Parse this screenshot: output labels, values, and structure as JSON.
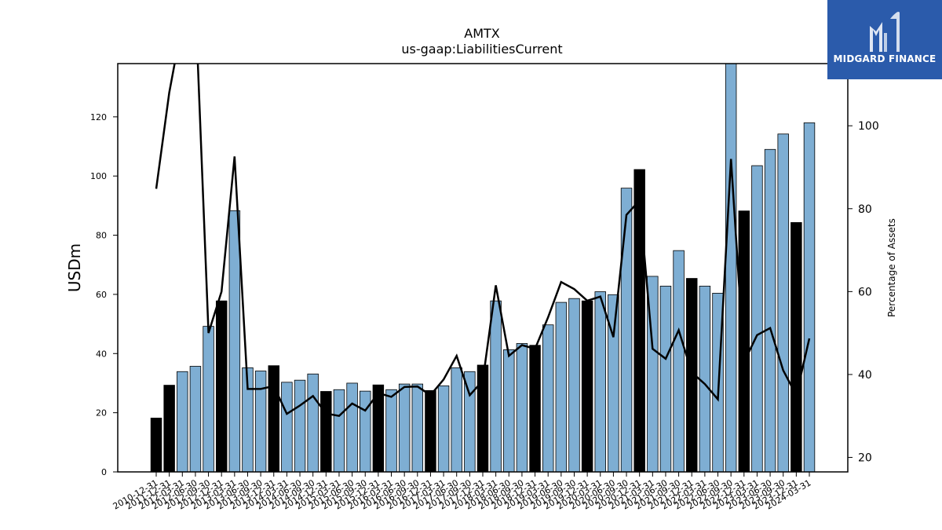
{
  "header": {
    "ticker": "AMTX",
    "concept": "us-gaap:LiabilitiesCurrent"
  },
  "logo": {
    "text": "MIDGARD FINANCE",
    "bg_color": "#2b5bab"
  },
  "colors": {
    "bar_quarter": "#7eaed3",
    "bar_year_end": "#000000",
    "line": "#000000"
  },
  "chart_data": {
    "type": "bar",
    "title": "AMTX",
    "subtitle": "us-gaap:LiabilitiesCurrent",
    "ylabel": "USDm",
    "y2label": "Percentage of Assets",
    "ylim": [
      0,
      138
    ],
    "y2lim": [
      16.5,
      115
    ],
    "yticks": [
      0,
      20,
      40,
      60,
      80,
      100,
      120
    ],
    "y2ticks": [
      20,
      40,
      60,
      80,
      100
    ],
    "categories": [
      "2010-12-31",
      "2011-12-31",
      "2012-03-31",
      "2012-06-30",
      "2012-09-30",
      "2012-12-31",
      "2013-03-31",
      "2013-06-30",
      "2013-09-30",
      "2013-12-31",
      "2014-03-31",
      "2014-06-30",
      "2014-09-30",
      "2014-12-31",
      "2015-03-31",
      "2015-06-30",
      "2015-09-30",
      "2015-12-31",
      "2016-03-31",
      "2016-06-30",
      "2016-09-30",
      "2016-12-31",
      "2017-03-31",
      "2017-06-30",
      "2017-09-30",
      "2017-12-31",
      "2018-03-31",
      "2018-06-30",
      "2018-09-30",
      "2018-12-31",
      "2019-03-31",
      "2019-06-30",
      "2019-09-30",
      "2019-12-31",
      "2020-03-31",
      "2020-06-30",
      "2020-09-30",
      "2020-12-31",
      "2021-03-31",
      "2021-06-30",
      "2021-09-30",
      "2021-12-31",
      "2022-03-31",
      "2022-06-30",
      "2022-09-30",
      "2022-12-31",
      "2023-03-31",
      "2023-06-30",
      "2023-09-30",
      "2023-12-31",
      "2024-03-31"
    ],
    "year_end_flags": [
      1,
      1,
      0,
      0,
      0,
      1,
      0,
      0,
      0,
      1,
      0,
      0,
      0,
      1,
      0,
      0,
      0,
      1,
      0,
      0,
      0,
      1,
      0,
      0,
      0,
      1,
      0,
      0,
      0,
      1,
      0,
      0,
      0,
      1,
      0,
      0,
      0,
      1,
      0,
      0,
      0,
      1,
      0,
      0,
      0,
      1,
      0,
      0,
      0,
      1,
      0
    ],
    "series": [
      {
        "name": "LiabilitiesCurrent",
        "axis": "left",
        "values": [
          18.2,
          29.3,
          33.9,
          35.7,
          49.2,
          57.8,
          88.3,
          35.2,
          34.1,
          35.9,
          30.3,
          31.0,
          33.1,
          27.2,
          27.8,
          30.0,
          27.3,
          29.4,
          27.8,
          29.7,
          29.7,
          27.5,
          29.1,
          35.2,
          33.9,
          36.1,
          57.8,
          41.3,
          43.4,
          42.8,
          49.7,
          57.3,
          58.6,
          57.8,
          60.9,
          59.9,
          95.9,
          102.2,
          66.1,
          62.8,
          74.8,
          65.4,
          62.8,
          60.4,
          139.0,
          88.2,
          103.5,
          109.0,
          114.2,
          84.3,
          118.0
        ]
      },
      {
        "name": "Percentage of Assets",
        "axis": "right",
        "type": "line",
        "values": [
          84.8,
          108.0,
          125.0,
          130.0,
          50.0,
          60.0,
          92.6,
          36.5,
          36.5,
          37.2,
          30.5,
          32.5,
          34.8,
          30.6,
          30.0,
          33.0,
          31.3,
          35.5,
          34.6,
          37.0,
          37.1,
          35.0,
          38.8,
          44.5,
          35.0,
          38.5,
          61.5,
          44.5,
          47.1,
          46.2,
          53.8,
          62.3,
          60.6,
          57.8,
          58.8,
          49.0,
          78.5,
          82.0,
          46.2,
          43.8,
          50.7,
          40.5,
          37.7,
          34.0,
          92.0,
          43.0,
          49.5,
          51.2,
          41.0,
          35.0,
          48.7
        ]
      }
    ]
  }
}
